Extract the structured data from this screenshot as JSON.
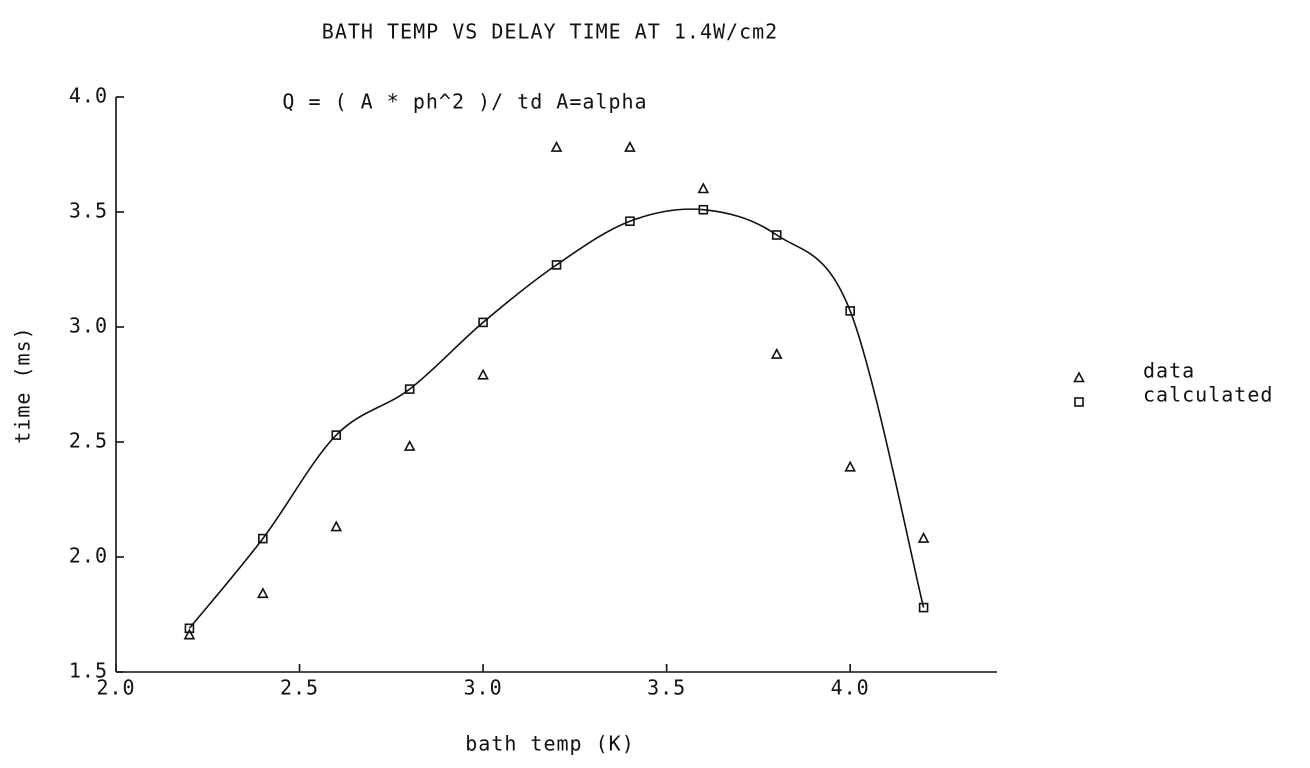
{
  "chart_data": {
    "type": "scatter",
    "title": "BATH TEMP VS DELAY TIME AT 1.4W/cm2",
    "annotation": "Q = ( A * ph^2 )/ td  A=alpha",
    "x_label": "bath temp (K)",
    "y_label": "time (ms)",
    "xlim": [
      2.0,
      4.4
    ],
    "ylim": [
      1.5,
      4.0
    ],
    "xticks": [
      {
        "value": 2,
        "label": "2.0"
      },
      2.5,
      {
        "value": 3,
        "label": "3.0"
      },
      3.5,
      {
        "value": 4,
        "label": "4.0"
      }
    ],
    "yticks": [
      1.5,
      {
        "value": 2,
        "label": "2.0"
      },
      2.5,
      {
        "value": 3,
        "label": "3.0"
      },
      3.5,
      {
        "value": 4,
        "label": "4.0"
      }
    ],
    "x": [
      2.2,
      2.4,
      2.6,
      2.8,
      3.0,
      3.2,
      3.4,
      3.6,
      3.8,
      4.0,
      4.2
    ],
    "series": [
      {
        "name": "data",
        "color": "#111111",
        "marker": "triangle",
        "line": false,
        "values": [
          1.66,
          1.84,
          2.13,
          2.48,
          2.79,
          3.78,
          3.78,
          3.6,
          2.88,
          2.39,
          2.08
        ]
      },
      {
        "name": "calculated",
        "color": "#111111",
        "marker": "square",
        "line": true,
        "values": [
          1.69,
          2.08,
          2.53,
          2.73,
          3.02,
          3.27,
          3.46,
          3.51,
          3.4,
          3.07,
          1.78
        ]
      }
    ],
    "legend": "right"
  }
}
